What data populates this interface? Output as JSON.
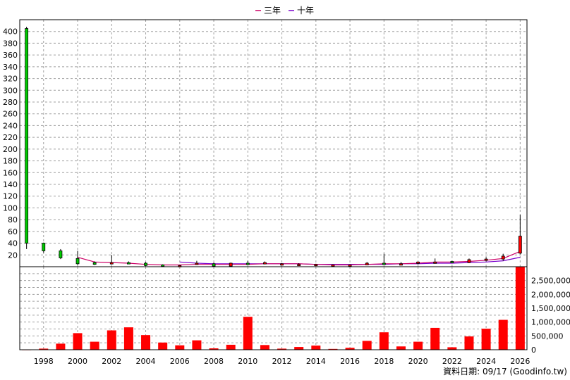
{
  "chart_data": [
    {
      "type": "candlestick",
      "legend": [
        {
          "label": "三年",
          "color": "#cc0066"
        },
        {
          "label": "十年",
          "color": "#7a00cc"
        }
      ],
      "yticks": [
        20,
        40,
        60,
        80,
        100,
        120,
        140,
        160,
        180,
        200,
        220,
        240,
        260,
        280,
        300,
        320,
        340,
        360,
        380,
        400
      ],
      "ylim": [
        0,
        420
      ],
      "xlim": [
        1996.6,
        2026.4
      ],
      "candles": [
        {
          "year": 1997,
          "open": 405,
          "close": 40,
          "high": 408,
          "low": 30
        },
        {
          "year": 1998,
          "open": 40,
          "close": 27,
          "high": 41,
          "low": 24
        },
        {
          "year": 1999,
          "open": 27,
          "close": 15,
          "high": 30,
          "low": 13
        },
        {
          "year": 2000,
          "open": 14,
          "close": 5,
          "high": 27,
          "low": 3
        },
        {
          "year": 2001,
          "open": 7,
          "close": 4,
          "high": 9,
          "low": 3
        },
        {
          "year": 2002,
          "open": 7,
          "close": 7,
          "high": 20,
          "low": 4
        },
        {
          "year": 2003,
          "open": 7,
          "close": 6,
          "high": 9,
          "low": 5
        },
        {
          "year": 2004,
          "open": 6,
          "close": 2,
          "high": 8,
          "low": 1
        },
        {
          "year": 2005,
          "open": 3,
          "close": 2,
          "high": 4,
          "low": 1
        },
        {
          "year": 2006,
          "open": 2,
          "close": 2,
          "high": 3,
          "low": 1
        },
        {
          "year": 2007,
          "open": 6,
          "close": 6,
          "high": 10,
          "low": 3
        },
        {
          "year": 2008,
          "open": 5,
          "close": 1,
          "high": 7,
          "low": 0
        },
        {
          "year": 2009,
          "open": 1,
          "close": 6,
          "high": 7,
          "low": 1
        },
        {
          "year": 2010,
          "open": 6,
          "close": 5,
          "high": 10,
          "low": 4
        },
        {
          "year": 2011,
          "open": 5,
          "close": 7,
          "high": 9,
          "low": 4
        },
        {
          "year": 2012,
          "open": 5,
          "close": 5,
          "high": 6,
          "low": 4
        },
        {
          "year": 2013,
          "open": 4,
          "close": 4,
          "high": 6,
          "low": 3
        },
        {
          "year": 2014,
          "open": 4,
          "close": 4,
          "high": 5,
          "low": 3
        },
        {
          "year": 2015,
          "open": 3,
          "close": 3,
          "high": 4,
          "low": 2
        },
        {
          "year": 2016,
          "open": 3,
          "close": 3,
          "high": 4,
          "low": 2
        },
        {
          "year": 2017,
          "open": 3,
          "close": 6,
          "high": 8,
          "low": 3
        },
        {
          "year": 2018,
          "open": 6,
          "close": 5,
          "high": 22,
          "low": 4
        },
        {
          "year": 2019,
          "open": 5,
          "close": 5,
          "high": 8,
          "low": 4
        },
        {
          "year": 2020,
          "open": 6,
          "close": 8,
          "high": 9,
          "low": 4
        },
        {
          "year": 2021,
          "open": 8,
          "close": 8,
          "high": 14,
          "low": 6
        },
        {
          "year": 2022,
          "open": 9,
          "close": 7,
          "high": 10,
          "low": 6
        },
        {
          "year": 2023,
          "open": 7,
          "close": 12,
          "high": 14,
          "low": 6
        },
        {
          "year": 2024,
          "open": 12,
          "close": 13,
          "high": 16,
          "low": 9
        },
        {
          "year": 2025,
          "open": 13,
          "close": 18,
          "high": 22,
          "low": 10
        },
        {
          "year": 2026,
          "open": 23,
          "close": 52,
          "high": 88,
          "low": 21
        }
      ],
      "ma3": [
        [
          2000,
          16
        ],
        [
          2001,
          8
        ],
        [
          2002,
          7
        ],
        [
          2003,
          6
        ],
        [
          2004,
          4
        ],
        [
          2005,
          3
        ],
        [
          2006,
          3
        ],
        [
          2007,
          4
        ],
        [
          2008,
          4
        ],
        [
          2009,
          4
        ],
        [
          2010,
          4
        ],
        [
          2011,
          5
        ],
        [
          2012,
          5
        ],
        [
          2013,
          5
        ],
        [
          2014,
          4
        ],
        [
          2015,
          3
        ],
        [
          2016,
          3
        ],
        [
          2017,
          4
        ],
        [
          2018,
          5
        ],
        [
          2019,
          5
        ],
        [
          2020,
          6
        ],
        [
          2021,
          8
        ],
        [
          2022,
          8
        ],
        [
          2023,
          9
        ],
        [
          2024,
          11
        ],
        [
          2025,
          14
        ],
        [
          2026,
          26
        ]
      ],
      "ma10": [
        [
          2006,
          8
        ],
        [
          2007,
          6
        ],
        [
          2008,
          5
        ],
        [
          2009,
          5
        ],
        [
          2010,
          5
        ],
        [
          2011,
          5
        ],
        [
          2012,
          5
        ],
        [
          2013,
          5
        ],
        [
          2014,
          4
        ],
        [
          2015,
          4
        ],
        [
          2016,
          4
        ],
        [
          2017,
          4
        ],
        [
          2018,
          4
        ],
        [
          2019,
          5
        ],
        [
          2020,
          5
        ],
        [
          2021,
          6
        ],
        [
          2022,
          6
        ],
        [
          2023,
          7
        ],
        [
          2024,
          8
        ],
        [
          2025,
          10
        ],
        [
          2026,
          16
        ]
      ]
    },
    {
      "type": "bar",
      "yticks": [
        0,
        500000,
        1000000,
        1500000,
        2000000,
        2500000
      ],
      "ytick_labels": [
        "0",
        "500,000",
        "1,000,000",
        "1,500,000",
        "2,000,000",
        "2,500,000"
      ],
      "ylim": [
        0,
        3000000
      ],
      "xticks": [
        1998,
        2000,
        2002,
        2004,
        2006,
        2008,
        2010,
        2012,
        2014,
        2016,
        2018,
        2020,
        2022,
        2024,
        2026
      ],
      "x": [
        1997,
        1998,
        1999,
        2000,
        2001,
        2002,
        2003,
        2004,
        2005,
        2006,
        2007,
        2008,
        2009,
        2010,
        2011,
        2012,
        2013,
        2014,
        2015,
        2016,
        2017,
        2018,
        2019,
        2020,
        2021,
        2022,
        2023,
        2024,
        2025,
        2026
      ],
      "values": [
        10000,
        40000,
        220000,
        600000,
        290000,
        700000,
        810000,
        530000,
        260000,
        160000,
        340000,
        50000,
        180000,
        1190000,
        170000,
        40000,
        100000,
        150000,
        30000,
        70000,
        320000,
        630000,
        120000,
        290000,
        790000,
        90000,
        480000,
        760000,
        1080000,
        3000000
      ],
      "color": "#ff0000"
    }
  ],
  "source_note": "資料日期: 09/17  (Goodinfo.tw)"
}
